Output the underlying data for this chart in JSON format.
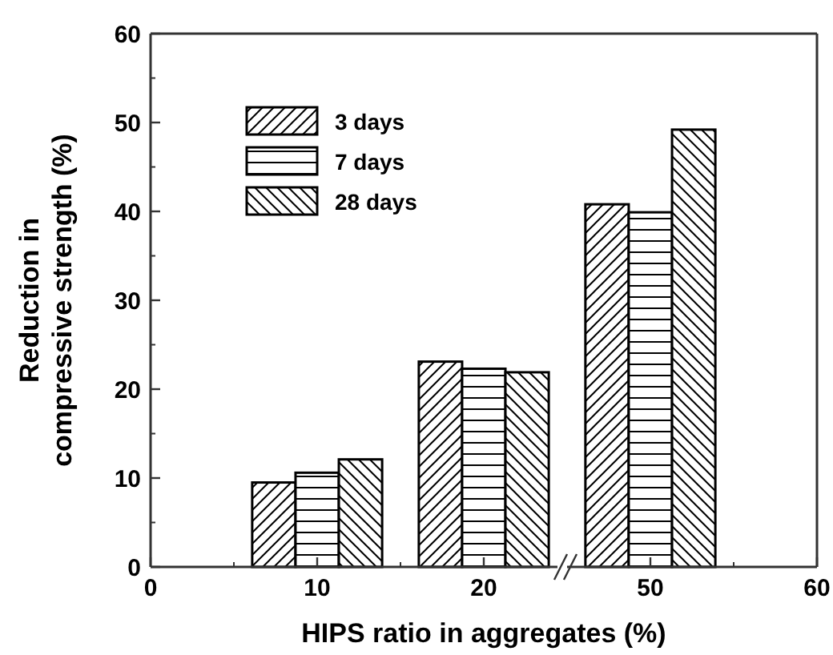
{
  "chart_data": [
    {
      "type": "bar",
      "xlabel": "HIPS ratio in aggregates (%)",
      "ylabel": "Reduction in compressive strength (%)",
      "xlim": [
        0,
        25
      ],
      "xticks": [
        0,
        10,
        20
      ],
      "ylim": [
        0,
        60
      ],
      "yticks": [
        0,
        10,
        20,
        30,
        40,
        50,
        60
      ],
      "legend": "top left",
      "grid": false,
      "series": [
        {
          "name": "3 days",
          "color": "#000000",
          "x": [
            7.4,
            17.4
          ],
          "values": [
            9.5,
            23.1
          ]
        },
        {
          "name": "7 days",
          "color": "#000000",
          "x": [
            10,
            20
          ],
          "values": [
            10.6,
            22.3
          ]
        },
        {
          "name": "28 days",
          "color": "#000000",
          "x": [
            12.6,
            22.6
          ],
          "values": [
            12.1,
            21.9
          ]
        }
      ]
    },
    {
      "type": "bar",
      "xlim": [
        45,
        60
      ],
      "xticks": [
        50,
        60
      ],
      "ylim": [
        0,
        60
      ],
      "tick_labels": "x",
      "grid": false,
      "series": [
        {
          "color": "#000000",
          "x": [
            47.4
          ],
          "values": [
            40.8
          ]
        },
        {
          "color": "#000000",
          "x": [
            50
          ],
          "values": [
            39.9
          ]
        },
        {
          "color": "#000000",
          "x": [
            52.6
          ],
          "values": [
            49.2
          ]
        }
      ]
    }
  ]
}
